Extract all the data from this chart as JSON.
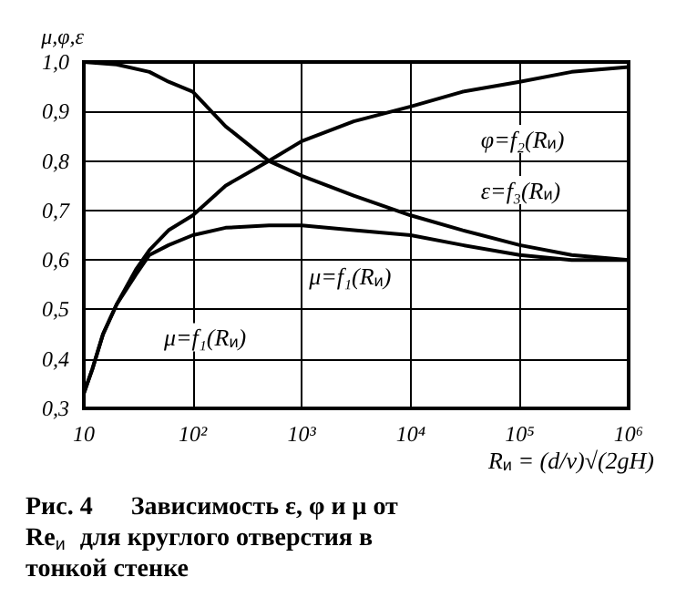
{
  "chart_data": {
    "type": "line",
    "ylabel": "μ,φ,ε",
    "xlabel": "R$_{и}$ = (d/ν)√(2gH)",
    "log": "x",
    "xlim": [
      10,
      1000000
    ],
    "xticks": [
      {
        "value": 10,
        "label": "10"
      },
      {
        "value": 100,
        "label": "10²"
      },
      {
        "value": 1000,
        "label": "10³"
      },
      {
        "value": 10000,
        "label": "10⁴"
      },
      {
        "value": 100000,
        "label": "10⁵"
      },
      {
        "value": 1000000,
        "label": "10⁶"
      }
    ],
    "ylim": [
      0.3,
      1.0
    ],
    "yticks": [
      {
        "value": 0.3,
        "label": "0,3"
      },
      {
        "value": 0.4,
        "label": "0,4"
      },
      {
        "value": 0.5,
        "label": "0,5"
      },
      {
        "value": 0.6,
        "label": "0,6"
      },
      {
        "value": 0.7,
        "label": "0,7"
      },
      {
        "value": 0.8,
        "label": "0,8"
      },
      {
        "value": 0.9,
        "label": "0,9"
      },
      {
        "value": 1.0,
        "label": "1,0"
      }
    ],
    "grid": true,
    "marker": "none",
    "line_style": "solid",
    "series": [
      {
        "color": "#000000",
        "x": [
          10,
          12,
          15,
          20,
          30,
          40,
          60,
          100,
          200,
          500,
          1000,
          3000,
          10000,
          30000,
          100000,
          300000,
          1000000
        ],
        "values": [
          0.33,
          0.38,
          0.45,
          0.51,
          0.58,
          0.62,
          0.66,
          0.69,
          0.75,
          0.8,
          0.84,
          0.88,
          0.91,
          0.94,
          0.96,
          0.98,
          0.99
        ]
      },
      {
        "color": "#000000",
        "x": [
          10,
          20,
          40,
          60,
          100,
          200,
          500,
          1000,
          3000,
          10000,
          30000,
          100000,
          300000,
          1000000
        ],
        "values": [
          1.0,
          0.995,
          0.98,
          0.96,
          0.94,
          0.87,
          0.8,
          0.77,
          0.73,
          0.69,
          0.66,
          0.63,
          0.61,
          0.6
        ]
      },
      {
        "color": "#000000",
        "x": [
          10,
          12,
          15,
          20,
          30,
          40,
          60,
          100,
          200,
          500,
          1000,
          3000,
          10000,
          30000,
          100000,
          300000,
          1000000
        ],
        "values": [
          0.33,
          0.38,
          0.45,
          0.51,
          0.57,
          0.61,
          0.63,
          0.65,
          0.665,
          0.67,
          0.67,
          0.66,
          0.65,
          0.63,
          0.61,
          0.6,
          0.6
        ]
      }
    ],
    "annotations": [
      {
        "text": "φ=f₂(R$_{и}$)",
        "x": 30000,
        "y": 0.94
      },
      {
        "text": "ε=f₃(R$_{и}$)",
        "x": 30000,
        "y": 0.66
      },
      {
        "text": "μ=f₁(R$_{и}$)",
        "x": 1000,
        "y": 0.67
      },
      {
        "text": "μ=f₁(R$_{и}$)",
        "x": 20,
        "y": 0.51
      },
      "Рис. 4      Зависимость ε, φ и μ от Re$_{и}$ для круглого отверстия в тонкой стенке"
    ]
  }
}
